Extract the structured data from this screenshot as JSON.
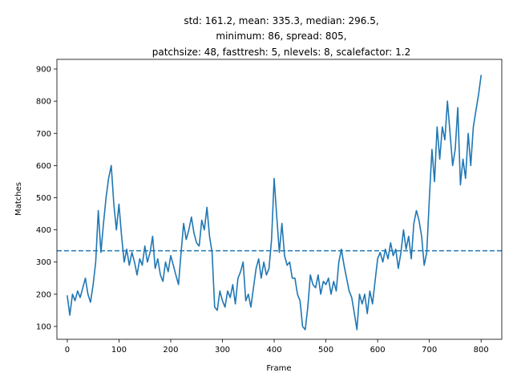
{
  "chart_data": {
    "type": "line",
    "title_lines": [
      "std: 161.2, mean: 335.3, median: 296.5,",
      "minimum: 86, spread: 805,",
      "patchsize: 48, fasttresh: 5, nlevels: 8, scalefactor: 1.2"
    ],
    "xlabel": "Frame",
    "ylabel": "Matches",
    "xlim": [
      -20,
      840
    ],
    "ylim": [
      60,
      930
    ],
    "xticks": [
      0,
      100,
      200,
      300,
      400,
      500,
      600,
      700,
      800
    ],
    "yticks": [
      100,
      200,
      300,
      400,
      500,
      600,
      700,
      800,
      900
    ],
    "mean_line": 335.3,
    "grid": false,
    "series_color": "#1f77b4",
    "series": [
      {
        "x": [
          0,
          5,
          10,
          15,
          20,
          25,
          30,
          35,
          40,
          45,
          50,
          55,
          60,
          65,
          70,
          75,
          80,
          85,
          90,
          95,
          100,
          105,
          110,
          115,
          120,
          125,
          130,
          135,
          140,
          145,
          150,
          155,
          160,
          165,
          170,
          175,
          180,
          185,
          190,
          195,
          200,
          205,
          210,
          215,
          220,
          225,
          230,
          235,
          240,
          245,
          250,
          255,
          260,
          265,
          270,
          275,
          280,
          285,
          290,
          295,
          300,
          305,
          310,
          315,
          320,
          325,
          330,
          335,
          340,
          345,
          350,
          355,
          360,
          365,
          370,
          375,
          380,
          385,
          390,
          395,
          400,
          405,
          410,
          415,
          420,
          425,
          430,
          435,
          440,
          445,
          450,
          455,
          460,
          465,
          470,
          475,
          480,
          485,
          490,
          495,
          500,
          505,
          510,
          515,
          520,
          525,
          530,
          535,
          540,
          545,
          550,
          555,
          560,
          565,
          570,
          575,
          580,
          585,
          590,
          595,
          600,
          605,
          610,
          615,
          620,
          625,
          630,
          635,
          640,
          645,
          650,
          655,
          660,
          665,
          670,
          675,
          680,
          685,
          690,
          695,
          700,
          705,
          710,
          715,
          720,
          725,
          730,
          735,
          740,
          745,
          750,
          755,
          760,
          765,
          770,
          775,
          780,
          785,
          790,
          795,
          800
        ],
        "values": [
          195,
          135,
          200,
          180,
          210,
          190,
          220,
          250,
          200,
          175,
          230,
          300,
          460,
          330,
          420,
          500,
          560,
          600,
          480,
          400,
          480,
          380,
          300,
          340,
          290,
          330,
          300,
          260,
          310,
          290,
          350,
          300,
          330,
          380,
          280,
          310,
          260,
          240,
          300,
          270,
          320,
          290,
          260,
          230,
          330,
          420,
          370,
          400,
          440,
          390,
          360,
          350,
          430,
          400,
          470,
          380,
          330,
          160,
          150,
          210,
          180,
          160,
          210,
          190,
          230,
          170,
          250,
          270,
          300,
          180,
          200,
          160,
          220,
          280,
          310,
          250,
          300,
          260,
          280,
          370,
          560,
          440,
          330,
          420,
          320,
          290,
          300,
          250,
          250,
          200,
          180,
          100,
          90,
          160,
          260,
          230,
          220,
          260,
          200,
          240,
          230,
          250,
          200,
          240,
          210,
          300,
          340,
          290,
          250,
          210,
          190,
          140,
          90,
          200,
          170,
          200,
          140,
          210,
          170,
          240,
          310,
          330,
          300,
          340,
          310,
          360,
          320,
          340,
          280,
          330,
          400,
          340,
          380,
          310,
          420,
          460,
          430,
          380,
          290,
          330,
          500,
          650,
          550,
          720,
          620,
          720,
          680,
          800,
          700,
          600,
          650,
          780,
          540,
          620,
          560,
          700,
          600,
          720,
          770,
          820,
          880
        ]
      }
    ]
  }
}
